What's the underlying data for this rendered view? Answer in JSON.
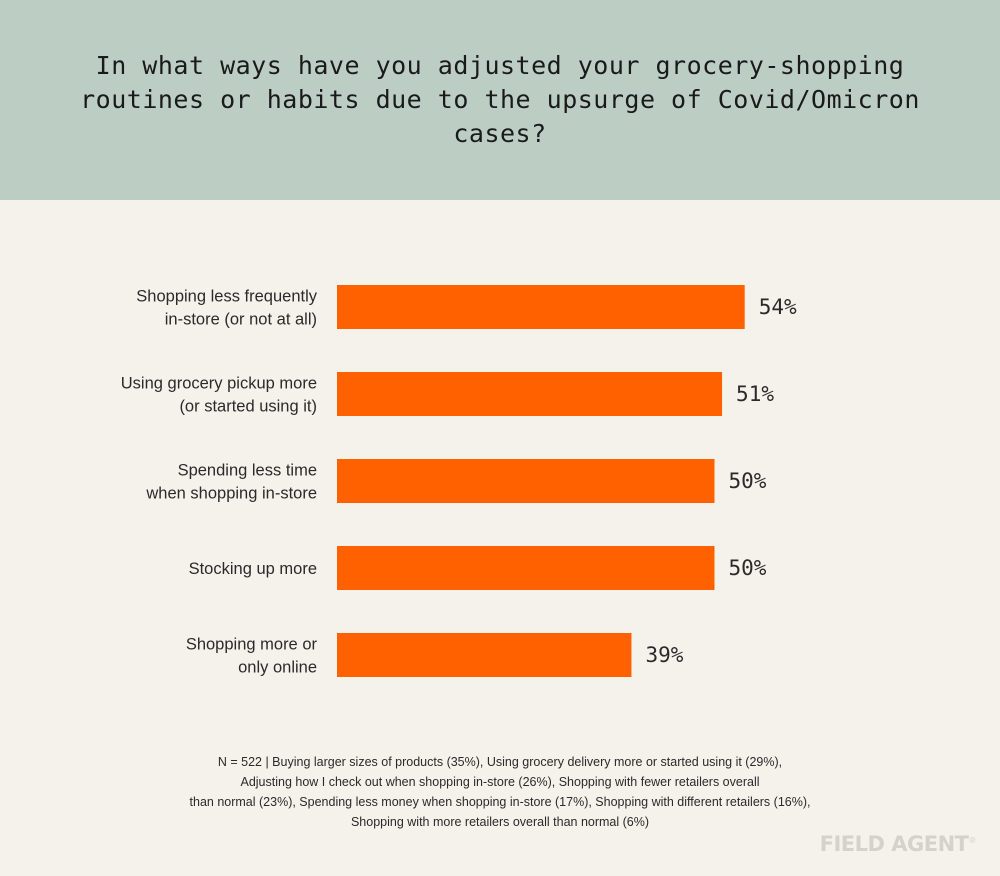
{
  "header": {
    "title": "In what ways have you adjusted your grocery-shopping routines or habits due to the upsurge of Covid/Omicron cases?",
    "background": "#bccec4"
  },
  "chart_data": {
    "type": "bar",
    "orientation": "horizontal",
    "categories": [
      [
        "Shopping less frequently",
        "in-store (or not at all)"
      ],
      [
        "Using grocery pickup more",
        "(or started using it)"
      ],
      [
        "Spending less time",
        "when shopping in-store"
      ],
      [
        "Stocking up more"
      ],
      [
        "Shopping more or",
        "only online"
      ]
    ],
    "values": [
      54,
      51,
      50,
      50,
      39
    ],
    "value_labels": [
      "54%",
      "51%",
      "50%",
      "50%",
      "39%"
    ],
    "bar_color": "#ff6100",
    "xlim": [
      0,
      100
    ],
    "grid": false,
    "legend": "none"
  },
  "footnote": [
    "N = 522  |  Buying larger sizes of products (35%), Using grocery delivery more or started using it (29%),",
    "Adjusting how I check out when shopping in-store (26%), Shopping with fewer retailers overall",
    "than normal (23%), Spending less money when shopping in-store (17%), Shopping with different retailers (16%),",
    "Shopping with more retailers overall than normal (6%)"
  ],
  "logo": {
    "text": "FIELD AGENT",
    "mark": "®",
    "color": "#d5d2cc"
  }
}
